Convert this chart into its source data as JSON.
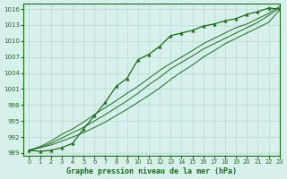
{
  "xlabel": "Graphe pression niveau de la mer (hPa)",
  "ylabel": "",
  "background_color": "#d8f0ec",
  "grid_color": "#b8ddd8",
  "line_color": "#1a6b1a",
  "text_color": "#1a6b1a",
  "ylim": [
    988.5,
    1017
  ],
  "xlim": [
    -0.5,
    23
  ],
  "yticks": [
    989,
    992,
    995,
    998,
    1001,
    1004,
    1007,
    1010,
    1013,
    1016
  ],
  "xticks": [
    0,
    1,
    2,
    3,
    4,
    5,
    6,
    7,
    8,
    9,
    10,
    11,
    12,
    13,
    14,
    15,
    16,
    17,
    18,
    19,
    20,
    21,
    22,
    23
  ],
  "hours": [
    0,
    1,
    2,
    3,
    4,
    5,
    6,
    7,
    8,
    9,
    10,
    11,
    12,
    13,
    14,
    15,
    16,
    17,
    18,
    19,
    20,
    21,
    22,
    23
  ],
  "pressure_main": [
    989.5,
    989.3,
    989.5,
    990.0,
    990.8,
    993.5,
    996.0,
    998.5,
    1001.5,
    1003.0,
    1006.5,
    1007.5,
    1009.0,
    1011.0,
    1011.5,
    1012.0,
    1012.8,
    1013.2,
    1013.8,
    1014.2,
    1015.0,
    1015.5,
    1016.2,
    1016.0
  ],
  "pressure_line2": [
    989.5,
    990.0,
    990.5,
    991.2,
    992.0,
    992.8,
    993.8,
    994.8,
    996.0,
    997.2,
    998.5,
    999.8,
    1001.2,
    1002.8,
    1004.2,
    1005.5,
    1007.0,
    1008.2,
    1009.5,
    1010.5,
    1011.5,
    1012.5,
    1013.5,
    1015.8
  ],
  "pressure_line3": [
    989.5,
    990.0,
    990.8,
    991.8,
    992.8,
    993.8,
    995.0,
    996.2,
    997.5,
    998.8,
    1000.2,
    1001.8,
    1003.2,
    1004.8,
    1006.0,
    1007.2,
    1008.5,
    1009.5,
    1010.5,
    1011.5,
    1012.5,
    1013.5,
    1014.8,
    1016.2
  ],
  "pressure_line4": [
    989.5,
    990.2,
    991.2,
    992.5,
    993.5,
    994.8,
    996.2,
    997.5,
    998.8,
    1000.2,
    1001.5,
    1003.0,
    1004.5,
    1005.8,
    1007.0,
    1008.2,
    1009.5,
    1010.5,
    1011.5,
    1012.5,
    1013.2,
    1014.2,
    1015.2,
    1016.5
  ]
}
